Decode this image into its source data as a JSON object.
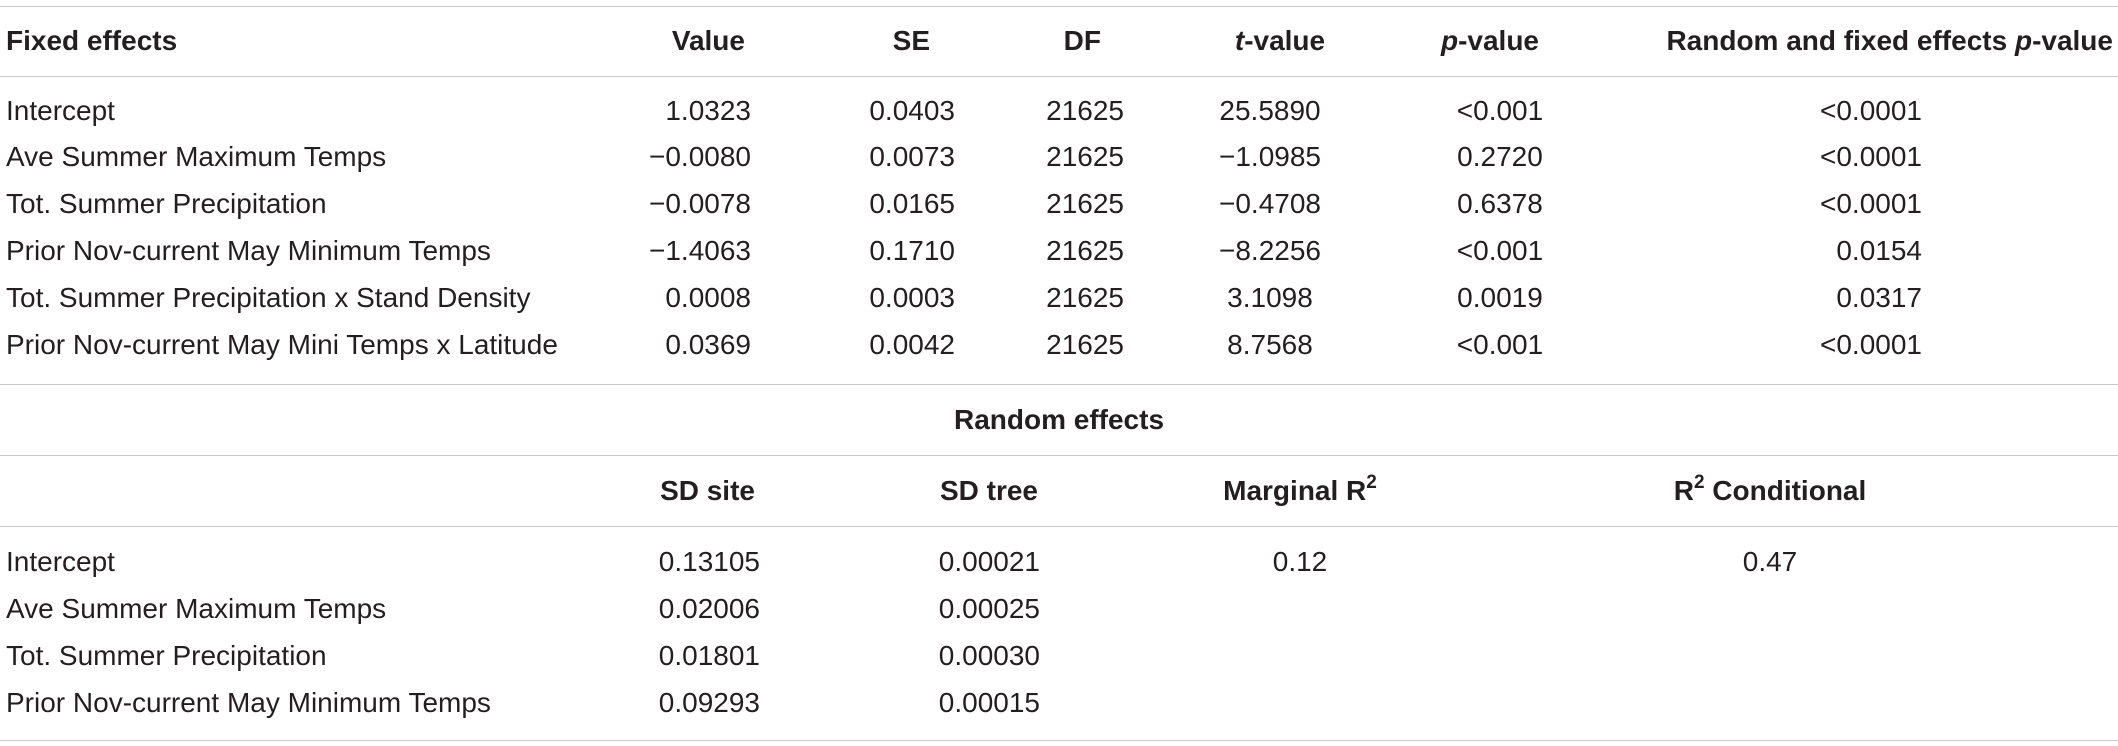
{
  "fixed": {
    "headers": {
      "fixed_effects": "Fixed effects",
      "value": "Value",
      "se": "SE",
      "df": "DF",
      "t_prefix": "t",
      "t_suffix": "-value",
      "p_prefix": "p",
      "p_suffix": "-value",
      "rf_main": "Random and fixed effects ",
      "rf_p": "p",
      "rf_suffix": "-value"
    },
    "rows": [
      {
        "label": "Intercept",
        "value": "1.0323",
        "se": "0.0403",
        "df": "21625",
        "t": "25.5890",
        "p": "<0.001",
        "rf": "<0.0001"
      },
      {
        "label": "Ave Summer Maximum Temps",
        "value": "−0.0080",
        "se": "0.0073",
        "df": "21625",
        "t": "−1.0985",
        "p": "0.2720",
        "rf": "<0.0001"
      },
      {
        "label": "Tot. Summer Precipitation",
        "value": "−0.0078",
        "se": "0.0165",
        "df": "21625",
        "t": "−0.4708",
        "p": "0.6378",
        "rf": "<0.0001"
      },
      {
        "label": "Prior Nov-current May Minimum Temps",
        "value": "−1.4063",
        "se": "0.1710",
        "df": "21625",
        "t": "−8.2256",
        "p": "<0.001",
        "rf": "0.0154"
      },
      {
        "label": "Tot. Summer Precipitation x Stand Density",
        "value": "0.0008",
        "se": "0.0003",
        "df": "21625",
        "t": "3.1098",
        "p": "0.0019",
        "rf": "0.0317"
      },
      {
        "label": "Prior Nov-current May Mini Temps x Latitude",
        "value": "0.0369",
        "se": "0.0042",
        "df": "21625",
        "t": "8.7568",
        "p": "<0.001",
        "rf": "<0.0001"
      }
    ]
  },
  "random": {
    "title": "Random effects",
    "headers": {
      "sd_site": "SD site",
      "sd_tree": "SD tree",
      "marginal": "Marginal R",
      "marginal_sup": "2",
      "cond_r": "R",
      "cond_sup": "2",
      "cond_text": " Conditional"
    },
    "rows": [
      {
        "label": "Intercept",
        "sd_site": "0.13105",
        "sd_tree": "0.00021",
        "marginal": "0.12",
        "conditional": "0.47"
      },
      {
        "label": "Ave Summer Maximum Temps",
        "sd_site": "0.02006",
        "sd_tree": "0.00025",
        "marginal": "",
        "conditional": ""
      },
      {
        "label": "Tot. Summer Precipitation",
        "sd_site": "0.01801",
        "sd_tree": "0.00030",
        "marginal": "",
        "conditional": ""
      },
      {
        "label": "Prior Nov-current May Minimum Temps",
        "sd_site": "0.09293",
        "sd_tree": "0.00015",
        "marginal": "",
        "conditional": ""
      }
    ]
  }
}
